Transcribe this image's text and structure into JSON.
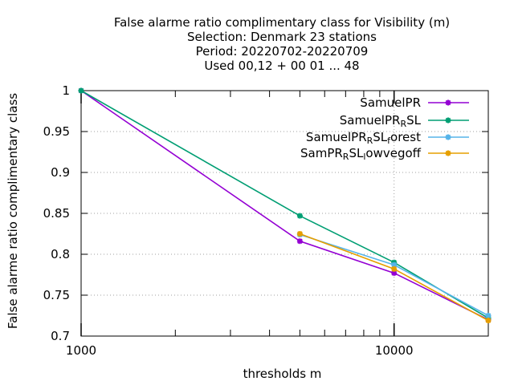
{
  "chart_data": {
    "type": "line",
    "title_lines": [
      "False alarme ratio complimentary class  for Visibility (m)",
      "Selection: Denmark      23 stations",
      "Period: 20220702-20220709",
      "Used  00,12  + 00 01 ... 48"
    ],
    "xlabel": "thresholds m",
    "ylabel": "False alarme ratio complimentary class",
    "x_scale": "log",
    "xlim": [
      1000,
      20000
    ],
    "ylim": [
      0.7,
      1.0
    ],
    "x_ticks": [
      {
        "value": 1000,
        "label": "1000"
      },
      {
        "value": 10000,
        "label": "10000"
      }
    ],
    "y_ticks": [
      {
        "value": 0.7,
        "label": "0.7"
      },
      {
        "value": 0.75,
        "label": "0.75"
      },
      {
        "value": 0.8,
        "label": "0.8"
      },
      {
        "value": 0.85,
        "label": "0.85"
      },
      {
        "value": 0.9,
        "label": "0.9"
      },
      {
        "value": 0.95,
        "label": "0.95"
      },
      {
        "value": 1.0,
        "label": "1"
      }
    ],
    "grid": true,
    "legend_position": "top-right",
    "series": [
      {
        "name": "SamuelPR",
        "label_parts": [
          {
            "t": "SamuelPR"
          }
        ],
        "color": "#9400d3",
        "x": [
          1000,
          5000,
          10000,
          20000
        ],
        "y": [
          1.0,
          0.816,
          0.777,
          0.72
        ]
      },
      {
        "name": "SamuelPR_RSL",
        "label_parts": [
          {
            "t": "SamuelPR"
          },
          {
            "t": "R",
            "sub": true
          },
          {
            "t": "SL"
          }
        ],
        "color": "#009e73",
        "x": [
          1000,
          5000,
          10000,
          20000
        ],
        "y": [
          1.0,
          0.847,
          0.79,
          0.722
        ]
      },
      {
        "name": "SamuelPR_RSL_forest",
        "label_parts": [
          {
            "t": "SamuelPR"
          },
          {
            "t": "R",
            "sub": true
          },
          {
            "t": "SL"
          },
          {
            "t": "f",
            "sub": true
          },
          {
            "t": "orest"
          }
        ],
        "color": "#56b4e9",
        "x": [
          5000,
          10000,
          20000
        ],
        "y": [
          0.824,
          0.787,
          0.725
        ]
      },
      {
        "name": "SamPR_RSL_lowvegoff",
        "label_parts": [
          {
            "t": "SamPR"
          },
          {
            "t": "R",
            "sub": true
          },
          {
            "t": "SL"
          },
          {
            "t": "l",
            "sub": true
          },
          {
            "t": "owvegoff"
          }
        ],
        "color": "#e69f00",
        "x": [
          5000,
          10000,
          20000
        ],
        "y": [
          0.825,
          0.782,
          0.719
        ]
      }
    ]
  }
}
